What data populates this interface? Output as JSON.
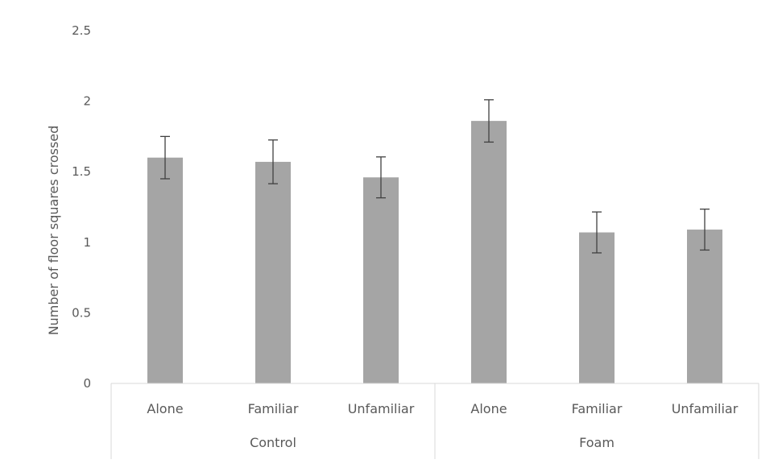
{
  "chart_data": {
    "type": "bar",
    "title": "",
    "xlabel": "",
    "ylabel": "Number of floor squares crossed",
    "ylim": [
      0,
      2.5
    ],
    "yticks": [
      "0",
      "0.5",
      "1",
      "1.5",
      "2",
      "2.5"
    ],
    "grid": false,
    "legend": "none",
    "groups": [
      {
        "name": "Control",
        "categories": [
          "Alone",
          "Familiar",
          "Unfamiliar"
        ],
        "values": [
          1.6,
          1.57,
          1.46
        ],
        "errors": [
          0.15,
          0.155,
          0.145
        ]
      },
      {
        "name": "Foam",
        "categories": [
          "Alone",
          "Familiar",
          "Unfamiliar"
        ],
        "values": [
          1.86,
          1.07,
          1.09
        ],
        "errors": [
          0.15,
          0.145,
          0.145
        ]
      }
    ],
    "colors": {
      "bar": "#a5a5a5",
      "errorbar": "#404040",
      "axis": "#d9d9d9",
      "text": "#595959"
    }
  }
}
